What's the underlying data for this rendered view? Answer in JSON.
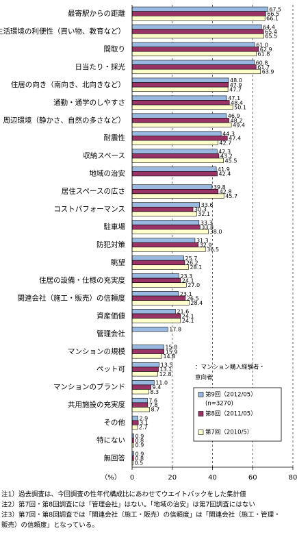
{
  "chart_data": {
    "type": "hbar",
    "categories": [
      "最寄駅からの距離",
      "生活環境の利便性（買い物、教育など）",
      "間取り",
      "日当たり・採光",
      "住居の向き（南向き、北向きなど）",
      "通勤・通学のしやすさ",
      "周辺環境（静かさ、自然の多さなど）",
      "耐震性",
      "収納スペース",
      "地域の治安",
      "居住スペースの広さ",
      "コストパフォーマンス",
      "駐車場",
      "防犯対策",
      "眺望",
      "住居の設備・仕様の充実度",
      "関連会社（施工・販売）の信頼度",
      "資産価値",
      "管理会社",
      "マンションの規模",
      "ペット可",
      "マンションのブランド",
      "共用施設の充実度",
      "その他",
      "特にない",
      "無回答"
    ],
    "series": [
      {
        "name": "第9回（2012/05）",
        "color": "#9ab9e0",
        "values": [
          67.5,
          64.4,
          61.0,
          60.8,
          48.0,
          47.1,
          46.9,
          44.3,
          42.3,
          41.9,
          39.8,
          33.6,
          33.3,
          31.3,
          25.7,
          23.3,
          23.1,
          21.6,
          17.8,
          15.8,
          13.5,
          11.0,
          7.6,
          2.9,
          0.9,
          0.9
        ],
        "value_labels": [
          "67.5",
          "64.4",
          "61.0",
          "60.8",
          "48.0",
          "47.1",
          "46.9",
          "44.3",
          "42.3",
          "41.9",
          "39.8",
          "33.6",
          "33.3",
          "31.3",
          "25.7",
          "23.3",
          "23.1",
          "21.6",
          "17.8",
          "15.8",
          "13.5",
          "11.0",
          "7.6",
          "2.9",
          "0.9",
          "0.9"
        ]
      },
      {
        "name": "第8回（2011/05）",
        "color": "#993366",
        "values": [
          66.5,
          65.4,
          62.9,
          61.7,
          47.9,
          48.4,
          48.2,
          47.4,
          43.2,
          42.4,
          42.8,
          30.3,
          33.8,
          32.9,
          26.2,
          24.1,
          26.5,
          24.1,
          null,
          15.9,
          13.1,
          9.4,
          7.8,
          3.1,
          0.8,
          0.8
        ],
        "value_labels": [
          "66.5",
          "65.4",
          "62.9",
          "61.7",
          "47.9",
          "48.4",
          "48.2",
          "47.4",
          "43.2",
          "42.4",
          "42.8",
          "30.3",
          "33.8",
          "32.9",
          "26.2",
          "24.1",
          "26.5",
          "24.1",
          null,
          "15.9",
          "13.1",
          "9.4",
          "7.8",
          "3.1",
          "0.8",
          "0.8"
        ]
      },
      {
        "name": "第7回（2010/5）",
        "color": "#ffffcc",
        "values": [
          66.1,
          65.5,
          61.8,
          63.9,
          47.7,
          50.1,
          49.4,
          42.7,
          45.5,
          null,
          45.7,
          32.1,
          38.0,
          36.5,
          28.1,
          27.0,
          28.4,
          24.1,
          null,
          14.8,
          12.8,
          8.3,
          8.7,
          2.7,
          0.9,
          0.5
        ],
        "value_labels": [
          "66.1",
          "65.5",
          "61.8",
          "63.9",
          "47.7",
          "50.1",
          "49.4",
          "42.7",
          "45.5",
          null,
          "45.7",
          "32.1",
          "38.0",
          "36.5",
          "28.1",
          "27.0",
          "28.4",
          "24.1",
          null,
          "14.8",
          "12.8",
          "8.3",
          "8.7",
          "2.7",
          "0.9",
          "0.5"
        ]
      }
    ],
    "legend_title": [
      "：マンション購入経験者・",
      "意向者"
    ],
    "legend_note": "(n=3270)",
    "xlabel": "（%）",
    "xlim": [
      0,
      80
    ],
    "xticks": [
      0,
      20,
      40,
      60,
      80
    ],
    "grid": true,
    "notes": [
      "注1）過去調査は、今回調査の性年代構成比にあわせてウエイトバックをした集計値",
      "注2）第7回・第8回調査には「管理会社」はない。「地域の治安」は第7回調査にはない",
      "注3）第7回・第8回調査では「関連会社（施工・販売）の信頼度」は「関連会社（施工・管理・",
      "販売）の信頼度」となっている。"
    ]
  }
}
